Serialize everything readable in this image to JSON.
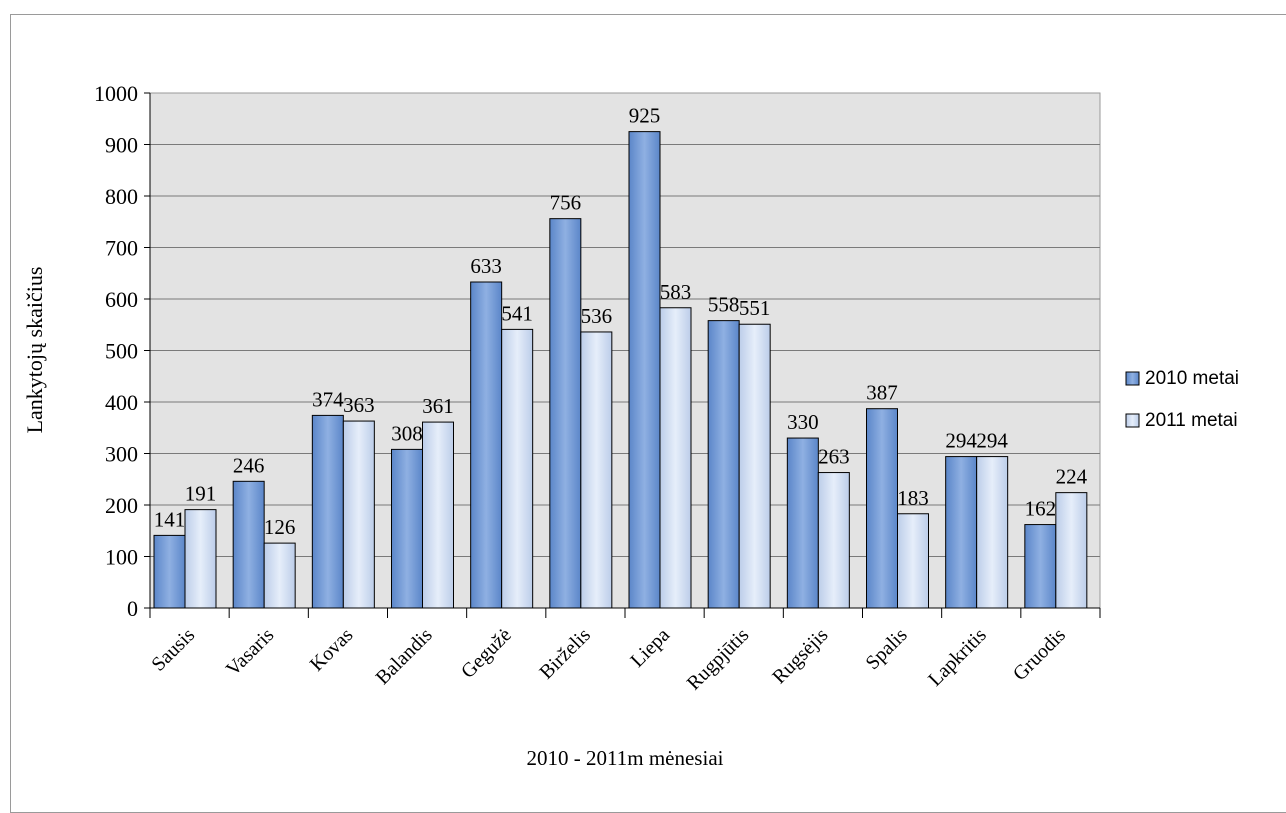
{
  "chart_data": {
    "type": "bar",
    "title": "",
    "xlabel": "2010 - 2011m mėnesiai",
    "ylabel": "Lankytojų skaičius",
    "ylim": [
      0,
      1000
    ],
    "yticks": [
      0,
      100,
      200,
      300,
      400,
      500,
      600,
      700,
      800,
      900,
      1000
    ],
    "ytick_labels": [
      "0",
      "100",
      "200",
      "300",
      "400",
      "500",
      "600",
      "700",
      "800",
      "900",
      "1000"
    ],
    "grid": true,
    "legend_position": "right",
    "categories": [
      "Sausis",
      "Vasaris",
      "Kovas",
      "Balandis",
      "Gegužė",
      "Birželis",
      "Liepa",
      "Rugpjūtis",
      "Rugsėjis",
      "Spalis",
      "Lapkritis",
      "Gruodis"
    ],
    "series": [
      {
        "name": "2010 metai",
        "color": "#6f96d2",
        "values": [
          141,
          246,
          374,
          308,
          633,
          756,
          925,
          558,
          330,
          387,
          294,
          162
        ],
        "labels": [
          "141",
          "246",
          "374",
          "308",
          "633",
          "756",
          "925",
          "558",
          "330",
          "387",
          "294",
          "162"
        ]
      },
      {
        "name": "2011 metai",
        "color": "#c9d8f0",
        "values": [
          191,
          126,
          363,
          361,
          541,
          536,
          583,
          551,
          263,
          183,
          294,
          224
        ],
        "labels": [
          "191",
          "126",
          "363",
          "361",
          "541",
          "536",
          "583",
          "551",
          "263",
          "183",
          "294",
          "224"
        ]
      }
    ]
  }
}
